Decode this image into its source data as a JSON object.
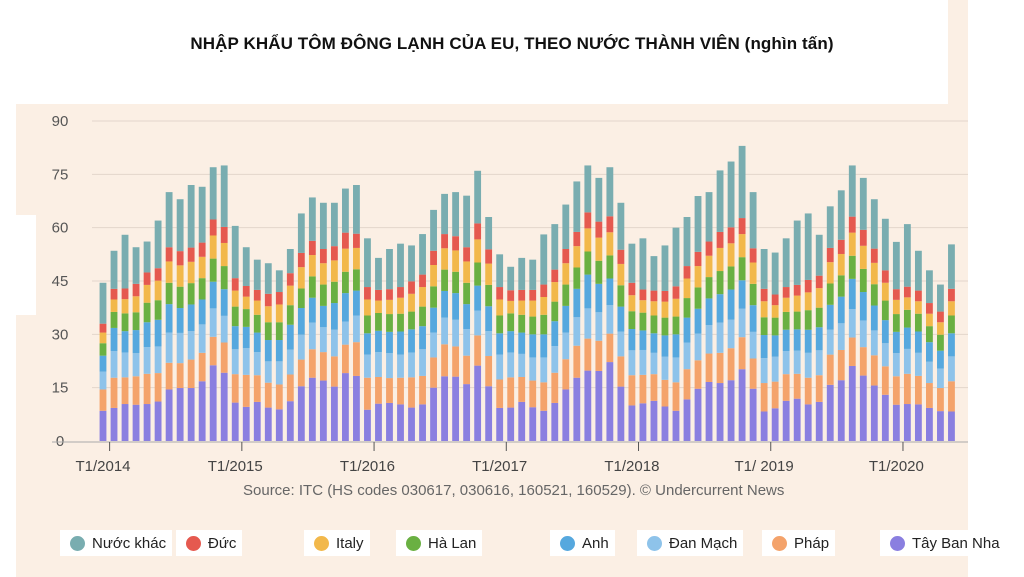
{
  "chart_data": {
    "type": "bar",
    "stacked": true,
    "title": "NHẬP KHẨU TÔM ĐÔNG LẠNH CỦA EU, THEO NƯỚC THÀNH VIÊN (nghìn tấn)",
    "source": "Source: ITC (HS codes 030617, 030616, 160521, 160529). © Undercurrent News",
    "ylim": [
      0,
      90
    ],
    "yticks": [
      0,
      15,
      30,
      45,
      60,
      75,
      90
    ],
    "x_tick_labels": [
      {
        "label": "T1/2014",
        "index": 0
      },
      {
        "label": "T1/2015",
        "index": 12
      },
      {
        "label": "T1/2016",
        "index": 24
      },
      {
        "label": "T1/2017",
        "index": 36
      },
      {
        "label": "T1/2018",
        "index": 48
      },
      {
        "label": "T1/ 2019",
        "index": 60
      },
      {
        "label": "T1/2020",
        "index": 72
      }
    ],
    "start_period": "T1/2014",
    "months": 78,
    "legend_position": "bottom",
    "series": [
      {
        "name": "Tây Ban Nha",
        "color": "#8a7fe0",
        "values": [
          8.5,
          9.3,
          10.4,
          10.2,
          10.4,
          11.1,
          14.5,
          14.9,
          14.9,
          16.8,
          21.3,
          19.2,
          10.8,
          9.6,
          11.0,
          9.4,
          8.9,
          11.2,
          15.4,
          17.8,
          17.0,
          15.3,
          19.1,
          18.3,
          8.8,
          10.5,
          10.7,
          10.3,
          9.4,
          10.3,
          15.0,
          18.2,
          18.1,
          16.0,
          21.2,
          15.4,
          9.3,
          9.4,
          11.0,
          9.5,
          8.5,
          10.7,
          14.5,
          17.8,
          19.8,
          19.7,
          22.2,
          15.3,
          10.0,
          10.6,
          11.3,
          9.7,
          8.5,
          11.7,
          14.7,
          16.6,
          16.3,
          17.1,
          20.2,
          14.7,
          8.3,
          9.2,
          11.3,
          11.9,
          10.3,
          11.0,
          15.8,
          17.1,
          21.1,
          18.4,
          15.6,
          13.0,
          10.2,
          10.4,
          10.3,
          9.3,
          8.4,
          8.3
        ]
      },
      {
        "name": "Pháp",
        "color": "#f4a36b",
        "values": [
          6.0,
          8.5,
          7.5,
          8.0,
          8.5,
          8.0,
          7.5,
          7.0,
          8.0,
          8.0,
          8.0,
          8.5,
          8.0,
          9.0,
          7.5,
          7.0,
          7.0,
          7.5,
          7.5,
          8.0,
          8.0,
          8.5,
          8.0,
          9.5,
          9.0,
          7.5,
          7.0,
          7.5,
          8.5,
          8.0,
          8.5,
          9.0,
          8.5,
          8.0,
          8.5,
          8.5,
          8.0,
          8.5,
          7.0,
          7.5,
          8.0,
          8.5,
          8.5,
          9.0,
          9.0,
          8.5,
          8.0,
          8.5,
          8.5,
          8.0,
          7.5,
          7.5,
          8.0,
          8.5,
          8.0,
          8.0,
          8.5,
          9.0,
          9.0,
          8.5,
          8.0,
          7.5,
          7.5,
          7.0,
          7.5,
          7.5,
          8.5,
          8.5,
          8.0,
          8.0,
          8.5,
          8.0,
          8.0,
          8.5,
          8.0,
          7.0,
          6.5,
          8.5
        ]
      },
      {
        "name": "Đan Mạch",
        "color": "#8ec3ea",
        "values": [
          5.0,
          7.5,
          7.0,
          6.5,
          7.5,
          7.5,
          8.5,
          8.5,
          8.0,
          8.0,
          8.0,
          7.5,
          7.0,
          7.5,
          6.5,
          6.0,
          6.5,
          7.0,
          7.0,
          7.5,
          7.0,
          7.5,
          6.5,
          7.5,
          6.5,
          7.0,
          7.0,
          6.5,
          7.0,
          7.5,
          7.0,
          7.5,
          7.5,
          7.5,
          7.0,
          7.0,
          7.0,
          7.0,
          6.5,
          6.5,
          7.0,
          7.5,
          7.5,
          8.0,
          8.5,
          8.0,
          8.0,
          7.0,
          7.0,
          7.0,
          6.0,
          6.5,
          7.0,
          7.5,
          7.5,
          8.0,
          8.5,
          8.0,
          8.0,
          7.5,
          7.0,
          7.0,
          6.5,
          6.5,
          7.0,
          7.0,
          7.0,
          7.5,
          8.0,
          7.5,
          7.0,
          6.5,
          6.5,
          7.0,
          6.5,
          6.0,
          5.5,
          7.0
        ]
      },
      {
        "name": "Anh",
        "color": "#56a8de",
        "values": [
          4.5,
          6.5,
          6.0,
          6.5,
          7.0,
          7.5,
          8.0,
          7.0,
          7.5,
          7.0,
          7.5,
          7.5,
          6.5,
          6.0,
          5.5,
          6.0,
          6.0,
          7.0,
          7.5,
          7.0,
          6.0,
          7.5,
          8.0,
          7.0,
          6.0,
          6.0,
          6.0,
          6.5,
          6.5,
          6.5,
          7.0,
          7.5,
          7.5,
          7.0,
          7.0,
          7.0,
          6.0,
          6.0,
          6.0,
          6.5,
          6.5,
          7.0,
          7.5,
          8.0,
          9.5,
          8.0,
          7.5,
          7.0,
          6.0,
          5.5,
          5.5,
          6.0,
          6.5,
          7.0,
          7.0,
          7.5,
          8.0,
          8.5,
          8.0,
          7.5,
          6.5,
          6.0,
          6.0,
          6.0,
          6.5,
          6.5,
          7.0,
          7.5,
          8.5,
          8.0,
          7.0,
          6.5,
          6.0,
          6.0,
          6.0,
          5.5,
          5.0,
          6.5
        ]
      },
      {
        "name": "Hà Lan",
        "color": "#6ab042",
        "values": [
          3.5,
          4.5,
          5.0,
          5.0,
          5.5,
          5.5,
          6.0,
          6.0,
          6.0,
          6.0,
          6.5,
          6.5,
          5.5,
          5.0,
          5.0,
          5.0,
          5.0,
          5.5,
          5.5,
          6.0,
          6.0,
          6.0,
          6.0,
          6.0,
          5.0,
          5.0,
          5.0,
          5.0,
          5.0,
          5.5,
          6.0,
          6.0,
          6.0,
          6.0,
          6.5,
          6.0,
          5.0,
          5.0,
          5.0,
          5.0,
          5.5,
          5.5,
          6.0,
          6.0,
          6.5,
          6.5,
          6.5,
          6.0,
          5.0,
          5.0,
          5.0,
          5.0,
          5.0,
          5.5,
          6.0,
          6.0,
          6.5,
          6.5,
          6.5,
          6.0,
          5.0,
          5.0,
          5.0,
          5.0,
          5.5,
          5.5,
          6.0,
          6.0,
          6.5,
          6.5,
          6.0,
          5.5,
          5.0,
          5.0,
          5.0,
          4.5,
          4.5,
          5.0
        ]
      },
      {
        "name": "Italy",
        "color": "#f2b84b",
        "values": [
          3.0,
          3.5,
          4.0,
          4.5,
          5.0,
          5.5,
          6.0,
          6.0,
          6.0,
          6.0,
          6.5,
          6.5,
          4.5,
          3.5,
          4.0,
          4.5,
          5.0,
          5.5,
          6.0,
          6.0,
          6.0,
          6.0,
          6.5,
          6.0,
          4.5,
          3.5,
          4.0,
          4.5,
          5.0,
          5.5,
          6.0,
          6.0,
          6.0,
          6.0,
          6.5,
          6.0,
          4.5,
          3.5,
          4.0,
          4.5,
          5.0,
          5.5,
          6.0,
          6.0,
          6.5,
          6.5,
          6.5,
          6.0,
          4.5,
          3.5,
          4.0,
          4.5,
          5.0,
          5.5,
          6.0,
          6.0,
          6.5,
          6.5,
          6.5,
          6.0,
          4.5,
          3.5,
          4.0,
          4.5,
          5.0,
          5.5,
          6.0,
          6.0,
          6.5,
          6.5,
          6.0,
          5.0,
          4.0,
          3.5,
          3.5,
          3.5,
          3.5,
          4.0
        ]
      },
      {
        "name": "Đức",
        "color": "#e5594f",
        "values": [
          2.5,
          3.0,
          3.0,
          3.5,
          3.5,
          3.5,
          4.0,
          4.0,
          4.0,
          4.0,
          4.5,
          4.5,
          3.5,
          3.0,
          3.0,
          3.5,
          3.5,
          3.5,
          4.0,
          4.0,
          4.0,
          4.0,
          4.5,
          4.0,
          3.5,
          3.0,
          3.0,
          3.0,
          3.5,
          3.5,
          4.0,
          4.0,
          4.0,
          4.0,
          4.5,
          4.0,
          3.5,
          3.0,
          3.0,
          3.0,
          3.5,
          3.5,
          4.0,
          4.0,
          4.5,
          4.5,
          4.5,
          4.0,
          3.5,
          3.0,
          3.0,
          3.0,
          3.5,
          3.5,
          4.0,
          4.0,
          4.5,
          4.5,
          4.5,
          4.0,
          3.5,
          3.0,
          3.0,
          3.0,
          3.5,
          3.5,
          4.0,
          4.0,
          4.5,
          4.5,
          4.0,
          3.5,
          3.0,
          3.0,
          3.0,
          3.0,
          3.0,
          3.5
        ]
      },
      {
        "name": "Nước khác",
        "color": "#79adb0",
        "values": [
          11.5,
          10.7,
          15.1,
          10.3,
          8.7,
          13.4,
          15.5,
          14.6,
          17.6,
          15.7,
          14.7,
          17.3,
          14.7,
          10.9,
          8.5,
          8.6,
          6.1,
          6.8,
          11.1,
          12.2,
          13.0,
          12.2,
          12.4,
          13.7,
          13.7,
          9.0,
          11.3,
          12.2,
          10.1,
          11.4,
          11.5,
          11.3,
          12.4,
          14.5,
          14.8,
          9.1,
          9.2,
          6.6,
          9.0,
          8.5,
          14.1,
          12.8,
          12.5,
          14.2,
          13.2,
          12.3,
          13.8,
          13.2,
          11.0,
          14.4,
          9.7,
          12.8,
          16.5,
          13.8,
          15.7,
          13.9,
          17.3,
          18.5,
          20.3,
          15.8,
          11.2,
          11.8,
          13.7,
          18.1,
          18.7,
          11.5,
          11.7,
          13.9,
          14.4,
          14.6,
          13.9,
          14.5,
          13.3,
          17.6,
          11.2,
          9.2,
          7.6,
          12.5
        ]
      }
    ]
  },
  "legend": {
    "items": [
      {
        "label": "Nước khác",
        "color": "#79adb0"
      },
      {
        "label": "Đức",
        "color": "#e5594f"
      },
      {
        "label": "Italy",
        "color": "#f2b84b"
      },
      {
        "label": "Hà Lan",
        "color": "#6ab042"
      },
      {
        "label": "Anh",
        "color": "#56a8de"
      },
      {
        "label": "Đan Mạch",
        "color": "#8ec3ea"
      },
      {
        "label": "Pháp",
        "color": "#f4a36b"
      },
      {
        "label": "Tây Ban Nha",
        "color": "#8a7fe0"
      }
    ]
  }
}
